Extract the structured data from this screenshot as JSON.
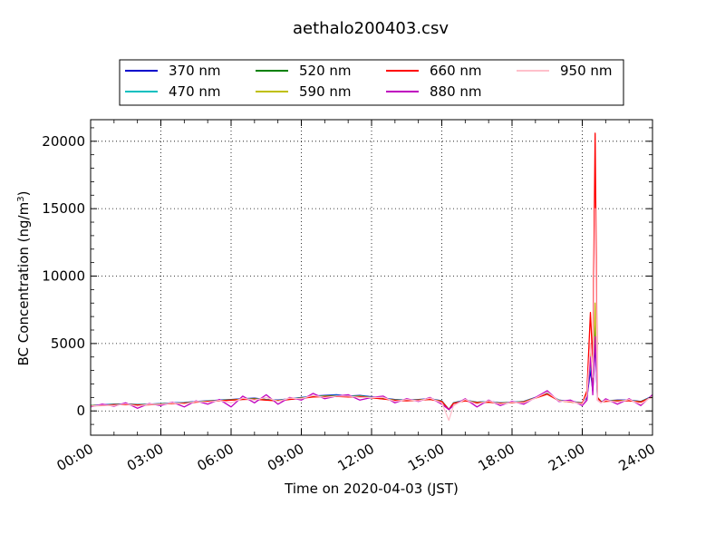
{
  "chart_data": {
    "type": "line",
    "title": "aethalo200403.csv",
    "xlabel": "Time on 2020-04-03 (JST)",
    "ylabel_main": "BC Concentration (ng/m",
    "ylabel_sup": "3",
    "ylabel_tail": ")",
    "xlim": [
      0,
      24
    ],
    "ylim": [
      -1800,
      21600
    ],
    "x_ticks": [
      0,
      3,
      6,
      9,
      12,
      15,
      18,
      21,
      24
    ],
    "x_tick_labels": [
      "00:00",
      "03:00",
      "06:00",
      "09:00",
      "12:00",
      "15:00",
      "18:00",
      "21:00",
      "24:00"
    ],
    "y_ticks": [
      0,
      5000,
      10000,
      15000,
      20000
    ],
    "y_tick_labels": [
      "0",
      "5000",
      "10000",
      "15000",
      "20000"
    ],
    "grid": true,
    "legend_position": "top-center",
    "x": [
      0,
      0.5,
      1,
      1.5,
      2,
      2.5,
      3,
      3.5,
      4,
      4.5,
      5,
      5.5,
      6,
      6.5,
      7,
      7.5,
      8,
      8.5,
      9,
      9.5,
      10,
      10.5,
      11,
      11.5,
      12,
      12.5,
      13,
      13.5,
      14,
      14.5,
      15,
      15.3,
      15.5,
      16,
      16.5,
      17,
      17.5,
      18,
      18.5,
      19,
      19.5,
      20,
      20.5,
      21,
      21.2,
      21.35,
      21.45,
      21.55,
      21.65,
      21.8,
      22,
      22.5,
      23,
      23.5,
      24
    ],
    "series": [
      {
        "name": "370 nm",
        "color": "#0000cc",
        "values": [
          400,
          450,
          500,
          520,
          480,
          500,
          550,
          600,
          620,
          700,
          750,
          800,
          850,
          900,
          950,
          850,
          800,
          900,
          1000,
          1100,
          1150,
          1200,
          1100,
          1150,
          1050,
          950,
          850,
          800,
          850,
          900,
          750,
          100,
          600,
          800,
          650,
          700,
          600,
          650,
          700,
          1000,
          1300,
          800,
          700,
          600,
          1000,
          3000,
          1500,
          5000,
          1000,
          700,
          750,
          800,
          800,
          700,
          1100
        ]
      },
      {
        "name": "470 nm",
        "color": "#00bfbf",
        "values": [
          400,
          430,
          480,
          500,
          460,
          480,
          530,
          580,
          600,
          680,
          730,
          780,
          830,
          880,
          920,
          830,
          780,
          880,
          980,
          1080,
          1120,
          1150,
          1080,
          1120,
          1020,
          920,
          820,
          780,
          830,
          880,
          730,
          100,
          590,
          780,
          640,
          680,
          590,
          640,
          690,
          980,
          1280,
          790,
          690,
          590,
          1100,
          3500,
          1700,
          6000,
          1000,
          690,
          740,
          780,
          780,
          690,
          1080
        ]
      },
      {
        "name": "520 nm",
        "color": "#008000",
        "values": [
          390,
          420,
          470,
          490,
          450,
          470,
          520,
          570,
          590,
          670,
          720,
          770,
          820,
          870,
          900,
          820,
          770,
          870,
          960,
          1060,
          1100,
          1120,
          1060,
          1100,
          1000,
          900,
          810,
          770,
          820,
          870,
          720,
          100,
          580,
          770,
          630,
          670,
          580,
          630,
          680,
          970,
          1260,
          780,
          680,
          580,
          1200,
          4000,
          1900,
          7000,
          1000,
          680,
          730,
          770,
          770,
          680,
          1060
        ]
      },
      {
        "name": "590 nm",
        "color": "#bfbf00",
        "values": [
          380,
          410,
          460,
          480,
          440,
          460,
          510,
          560,
          580,
          660,
          710,
          760,
          810,
          860,
          880,
          810,
          760,
          860,
          950,
          1050,
          1080,
          1100,
          1050,
          1080,
          990,
          890,
          800,
          760,
          810,
          860,
          710,
          100,
          570,
          760,
          620,
          660,
          570,
          620,
          670,
          960,
          1250,
          770,
          670,
          570,
          1300,
          4500,
          2100,
          8000,
          1000,
          670,
          720,
          760,
          760,
          670,
          1050
        ]
      },
      {
        "name": "660 nm",
        "color": "#ff0000",
        "values": [
          380,
          400,
          450,
          470,
          430,
          450,
          500,
          550,
          570,
          650,
          700,
          750,
          800,
          850,
          870,
          800,
          750,
          850,
          940,
          1040,
          1060,
          1080,
          1040,
          1060,
          980,
          880,
          790,
          750,
          800,
          850,
          700,
          100,
          560,
          750,
          610,
          650,
          560,
          610,
          660,
          950,
          1240,
          760,
          660,
          560,
          1500,
          7300,
          3600,
          20600,
          1000,
          660,
          710,
          750,
          750,
          660,
          1040
        ]
      },
      {
        "name": "880 nm",
        "color": "#bf00bf",
        "values": [
          300,
          500,
          350,
          600,
          200,
          550,
          400,
          650,
          300,
          750,
          500,
          850,
          300,
          1100,
          600,
          1200,
          500,
          1000,
          800,
          1300,
          900,
          1100,
          1200,
          800,
          1000,
          1100,
          600,
          900,
          700,
          1000,
          500,
          100,
          400,
          900,
          300,
          800,
          400,
          700,
          500,
          1000,
          1500,
          700,
          800,
          400,
          800,
          4000,
          1200,
          5500,
          800,
          600,
          900,
          500,
          900,
          400,
          1200
        ]
      },
      {
        "name": "950 nm",
        "color": "#ffc0cb",
        "values": [
          350,
          420,
          400,
          520,
          350,
          500,
          480,
          600,
          500,
          700,
          650,
          780,
          600,
          950,
          800,
          1000,
          700,
          950,
          900,
          1150,
          1000,
          1100,
          1100,
          1000,
          1000,
          1000,
          700,
          850,
          750,
          950,
          600,
          -700,
          400,
          850,
          500,
          750,
          500,
          650,
          600,
          950,
          1400,
          750,
          700,
          500,
          1200,
          5000,
          2500,
          15000,
          800,
          600,
          800,
          650,
          850,
          500,
          1100
        ]
      }
    ]
  }
}
